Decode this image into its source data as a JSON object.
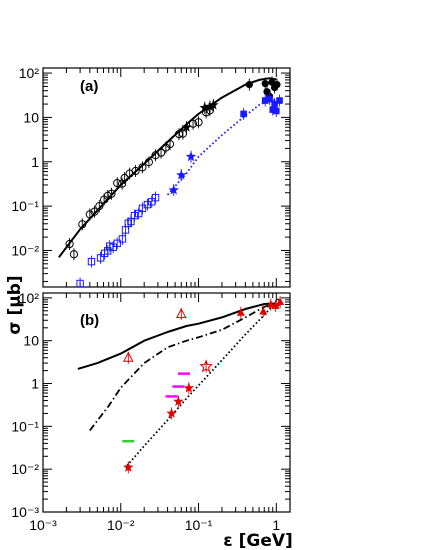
{
  "chart_data": [
    {
      "panel": "(a)",
      "type": "scatter",
      "x_scale": "log",
      "y_scale": "log",
      "xlim": [
        0.001,
        1.5
      ],
      "ylim": [
        0.0015,
        130
      ],
      "xlabel": "ε [GeV]",
      "ylabel": "σ [μb]",
      "y_ticks": [
        0.01,
        0.1,
        1,
        10,
        100
      ],
      "y_tick_labels": [
        "10⁻²",
        "10⁻¹",
        "1",
        "10",
        "10²"
      ],
      "grid": false,
      "colors": {
        "black": "#000000",
        "blue": "#1a1aff"
      },
      "series": [
        {
          "marker": "open-circle",
          "color": "#000000",
          "x": [
            0.0022,
            0.0025,
            0.0032,
            0.004,
            0.0046,
            0.0053,
            0.0061,
            0.0068,
            0.0076,
            0.009,
            0.0104,
            0.0112,
            0.013,
            0.0155,
            0.019,
            0.023,
            0.028,
            0.033,
            0.038,
            0.043,
            0.056,
            0.063,
            0.085,
            0.1,
            0.125,
            0.14
          ],
          "y": [
            0.014,
            0.0082,
            0.039,
            0.065,
            0.075,
            0.1,
            0.14,
            0.17,
            0.19,
            0.33,
            0.32,
            0.43,
            0.54,
            0.62,
            0.75,
            0.98,
            1.4,
            1.6,
            2.1,
            2.5,
            4.2,
            4.3,
            7.2,
            7.8,
            13.0,
            14.5
          ]
        },
        {
          "marker": "filled-star",
          "color": "#000000",
          "x": [
            0.07,
            0.12,
            0.14,
            0.155
          ],
          "y": [
            6.0,
            16.5,
            17.5,
            19.0
          ]
        },
        {
          "marker": "filled-circle",
          "color": "#000000",
          "x": [
            0.45,
            0.72,
            0.76,
            0.82,
            0.88,
            0.95,
            1.02
          ],
          "y": [
            55,
            58,
            38,
            30,
            62,
            47,
            55
          ]
        },
        {
          "marker": "open-square",
          "color": "#1a1aff",
          "x": [
            0.003,
            0.0042,
            0.0055,
            0.0062,
            0.0068,
            0.0072,
            0.008,
            0.009,
            0.0105,
            0.0115,
            0.0125,
            0.0135,
            0.015,
            0.017,
            0.019,
            0.022,
            0.025,
            0.028
          ],
          "y": [
            0.0018,
            0.0056,
            0.0068,
            0.0086,
            0.0098,
            0.0125,
            0.0118,
            0.0145,
            0.0182,
            0.029,
            0.041,
            0.045,
            0.061,
            0.068,
            0.089,
            0.108,
            0.125,
            0.155
          ]
        },
        {
          "marker": "filled-star",
          "color": "#1a1aff",
          "x": [
            0.048,
            0.06,
            0.08
          ],
          "y": [
            0.23,
            0.5,
            1.3
          ]
        },
        {
          "marker": "filled-square",
          "color": "#1a1aff",
          "x": [
            0.38,
            0.72,
            0.82,
            0.9,
            0.95,
            1.0,
            1.1
          ],
          "y": [
            12,
            24,
            26,
            15,
            20,
            14,
            24
          ]
        }
      ],
      "curves": [
        {
          "style": "solid",
          "color": "#000000",
          "x": [
            0.0016,
            0.003,
            0.005,
            0.01,
            0.02,
            0.04,
            0.07,
            0.1,
            0.2,
            0.4,
            0.6,
            0.8,
            1.0
          ],
          "y": [
            0.007,
            0.03,
            0.08,
            0.3,
            0.9,
            2.8,
            7,
            12,
            28,
            55,
            70,
            76,
            72
          ]
        },
        {
          "style": "dotted",
          "color": "#1a1aff",
          "x": [
            0.04,
            0.07,
            0.1,
            0.2,
            0.4,
            0.6,
            0.8,
            1.0
          ],
          "y": [
            0.18,
            0.55,
            1.3,
            4.0,
            11,
            19,
            24,
            25
          ]
        }
      ]
    },
    {
      "panel": "(b)",
      "type": "scatter",
      "x_scale": "log",
      "y_scale": "log",
      "xlim": [
        0.001,
        1.5
      ],
      "ylim": [
        0.001,
        130
      ],
      "xlabel": "ε [GeV]",
      "ylabel": "σ [μb]",
      "x_ticks": [
        0.001,
        0.01,
        0.1,
        1
      ],
      "x_tick_labels": [
        "10⁻³",
        "10⁻²",
        "10⁻¹",
        "1"
      ],
      "y_ticks": [
        0.001,
        0.01,
        0.1,
        1,
        10,
        100
      ],
      "y_tick_labels": [
        "10⁻³",
        "10⁻²",
        "10⁻¹",
        "1",
        "10",
        "10²"
      ],
      "grid": false,
      "colors": {
        "red": "#e00000",
        "magenta": "#ff00ff",
        "green": "#33cc33"
      },
      "series": [
        {
          "marker": "open-triangle",
          "color": "#e00000",
          "x": [
            0.0125,
            0.06
          ],
          "y": [
            4.0,
            42
          ]
        },
        {
          "marker": "open-star",
          "color": "#e00000",
          "x": [
            0.125
          ],
          "y": [
            2.5
          ]
        },
        {
          "marker": "filled-star",
          "color": "#e00000",
          "x": [
            0.0125,
            0.045,
            0.055,
            0.075
          ],
          "y": [
            0.011,
            0.2,
            0.38,
            0.78
          ]
        },
        {
          "marker": "filled-triangle",
          "color": "#e00000",
          "x": [
            0.35,
            0.68,
            0.85,
            0.98,
            1.12
          ],
          "y": [
            45,
            48,
            70,
            65,
            80
          ]
        },
        {
          "marker": "dash",
          "color": "#ff00ff",
          "x": [
            0.045,
            0.055,
            0.065
          ],
          "y": [
            0.5,
            0.85,
            1.7
          ]
        },
        {
          "marker": "dash",
          "color": "#33cc33",
          "x": [
            0.0125
          ],
          "y": [
            0.045
          ]
        }
      ],
      "curves": [
        {
          "style": "solid",
          "color": "#000000",
          "x": [
            0.0028,
            0.005,
            0.01,
            0.02,
            0.04,
            0.07,
            0.1,
            0.2,
            0.4,
            0.7,
            0.9,
            1.1
          ],
          "y": [
            2.2,
            3.0,
            5.0,
            10,
            16,
            22,
            25,
            35,
            55,
            72,
            74,
            68
          ]
        },
        {
          "style": "dash-dot",
          "color": "#000000",
          "x": [
            0.004,
            0.007,
            0.01,
            0.02,
            0.04,
            0.07,
            0.1,
            0.2,
            0.4,
            0.7,
            0.9,
            1.1
          ],
          "y": [
            0.08,
            0.3,
            0.8,
            3,
            7,
            10,
            12,
            18,
            35,
            62,
            72,
            70
          ]
        },
        {
          "style": "dotted",
          "color": "#000000",
          "x": [
            0.012,
            0.02,
            0.04,
            0.07,
            0.1,
            0.2,
            0.4,
            0.7,
            1.1
          ],
          "y": [
            0.012,
            0.035,
            0.14,
            0.45,
            0.9,
            3.5,
            14,
            40,
            100
          ]
        }
      ]
    }
  ]
}
